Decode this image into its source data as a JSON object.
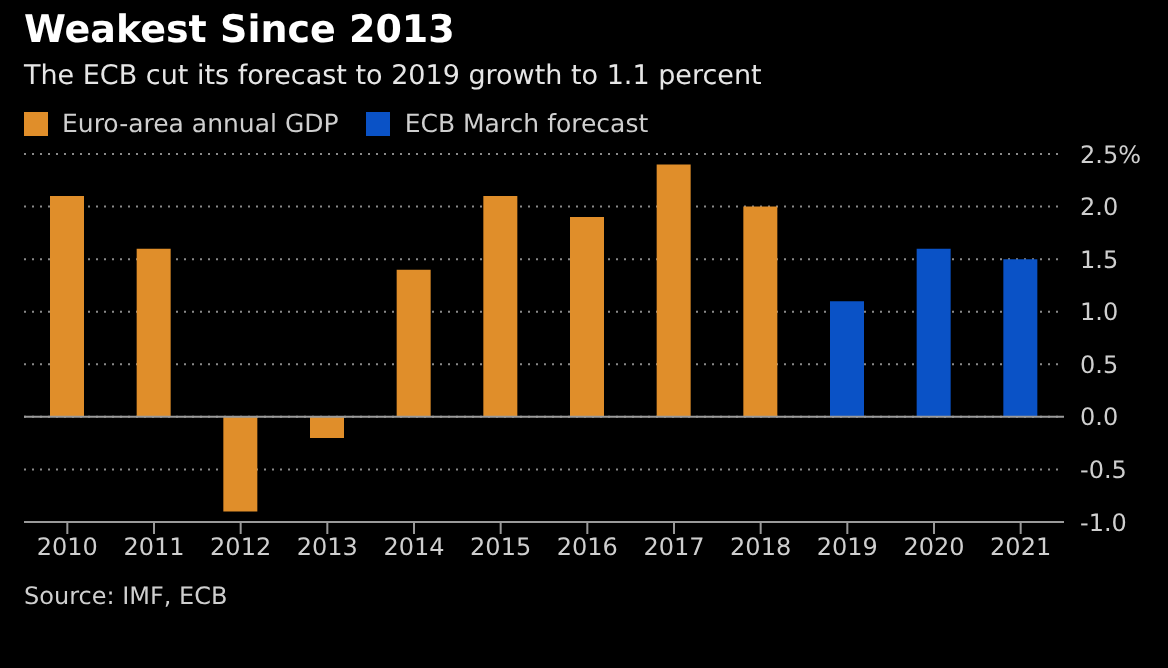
{
  "chart_data": {
    "type": "bar",
    "title": "Weakest Since 2013",
    "subtitle": "The ECB cut its forecast to 2019 growth to 1.1 percent",
    "categories": [
      "2010",
      "2011",
      "2012",
      "2013",
      "2014",
      "2015",
      "2016",
      "2017",
      "2018",
      "2019",
      "2020",
      "2021"
    ],
    "series": [
      {
        "name": "Euro-area annual GDP",
        "color": "#e08e2a",
        "values": [
          2.1,
          1.6,
          -0.9,
          -0.2,
          1.4,
          2.1,
          1.9,
          2.4,
          2.0,
          null,
          null,
          null
        ]
      },
      {
        "name": "ECB March forecast",
        "color": "#0a52c6",
        "values": [
          null,
          null,
          null,
          null,
          null,
          null,
          null,
          null,
          null,
          1.1,
          1.6,
          1.5
        ]
      }
    ],
    "ylim": [
      -1.0,
      2.5
    ],
    "yticks": [
      {
        "value": -1.0,
        "label": "-1.0"
      },
      {
        "value": -0.5,
        "label": "-0.5"
      },
      {
        "value": 0,
        "label": "0.0"
      },
      {
        "value": 0.5,
        "label": "0.5"
      },
      {
        "value": 1.0,
        "label": "1.0"
      },
      {
        "value": 1.5,
        "label": "1.5"
      },
      {
        "value": 2.0,
        "label": "2.0"
      },
      {
        "value": 2.5,
        "label": "2.5%"
      }
    ],
    "grid": "y",
    "legend": "top left",
    "ref_lines": [
      {
        "axis": "y",
        "value": 0,
        "color": "#9a9a9a",
        "line_style": "solid"
      }
    ],
    "annotations": [
      "Source: IMF, ECB"
    ]
  }
}
